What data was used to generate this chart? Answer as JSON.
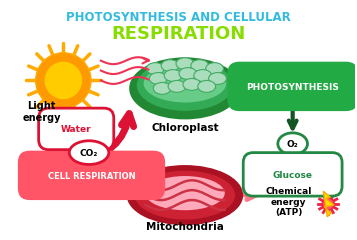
{
  "title_line1": "PHOTOSYNTHESIS AND CELLULAR",
  "title_line2": "RESPIRATION",
  "title_color1": "#33bbdd",
  "title_color2": "#88dd00",
  "bg_color": "#ffffff",
  "sun_color_outer": "#ff9900",
  "sun_color_inner": "#ffcc00",
  "sun_ray_color": "#ffaa00",
  "chloroplast_outer_color": "#228833",
  "chloroplast_mid_color": "#33aa55",
  "chloroplast_inner_color": "#66cc88",
  "disc_color": "#aaddbb",
  "disc_edge_color": "#44aa66",
  "mito_outer_color": "#aa1122",
  "mito_mid_color": "#cc2233",
  "mito_inner_color": "#ffaabb",
  "mito_cristae_color": "#cc3344",
  "photosynthesis_label": "PHOTOSYNTHESIS",
  "photosynthesis_box_color": "#22aa44",
  "cell_respiration_label": "CELL RESPIRATION",
  "cell_respiration_box_color": "#ff5566",
  "water_label": "Water",
  "co2_label": "CO₂",
  "o2_label": "O₂",
  "glucose_label": "Glucose",
  "light_energy_label": "Light\nenergy",
  "chloroplast_label": "Chloroplast",
  "mitochondria_label": "Mitochondria",
  "chemical_energy_label": "Chemical\nenergy\n(ATP)",
  "arrow_red_color": "#dd1133",
  "arrow_green_color": "#115522",
  "arrow_pink_color": "#ff7788",
  "wave_color": "#ee3355"
}
